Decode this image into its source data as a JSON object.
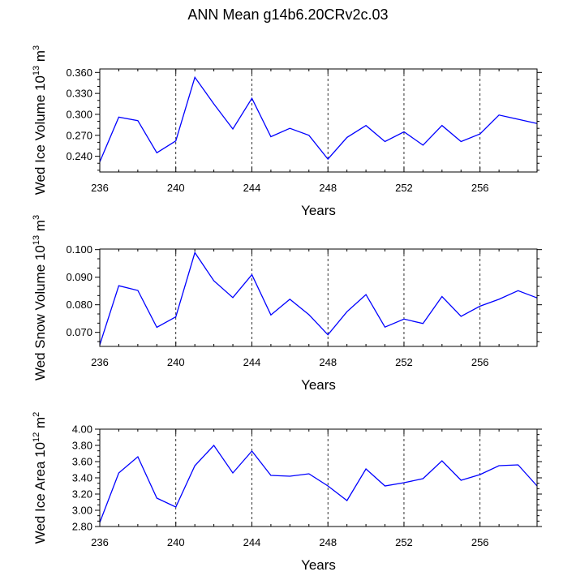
{
  "title": "ANN Mean g14b6.20CRv2c.03",
  "chart_data": [
    {
      "type": "line",
      "title": "ANN Mean g14b6.20CRv2c.03",
      "xlabel": "Years",
      "ylabel": "Wed Ice Volume 10^13 m^3",
      "ylabel_parts": [
        "Wed Ice Volume 10",
        "13",
        " m",
        "3"
      ],
      "xlim": [
        236,
        259
      ],
      "ylim": [
        0.2175,
        0.365
      ],
      "xticks": [
        236,
        240,
        244,
        248,
        252,
        256
      ],
      "yticks": [
        0.24,
        0.27,
        0.3,
        0.33,
        0.36
      ],
      "ytick_labels": [
        "0.240",
        "0.270",
        "0.300",
        "0.330",
        "0.360"
      ],
      "gridlines_x": [
        240,
        244,
        248,
        252,
        256
      ],
      "color": "#0000ff",
      "x": [
        236,
        237,
        238,
        239,
        240,
        241,
        242,
        243,
        244,
        245,
        246,
        247,
        248,
        249,
        250,
        251,
        252,
        253,
        254,
        255,
        256,
        257,
        258,
        259
      ],
      "values": [
        0.232,
        0.296,
        0.291,
        0.245,
        0.262,
        0.353,
        0.315,
        0.279,
        0.323,
        0.268,
        0.28,
        0.27,
        0.236,
        0.267,
        0.284,
        0.261,
        0.275,
        0.256,
        0.284,
        0.261,
        0.272,
        0.299,
        0.293,
        0.287
      ]
    },
    {
      "type": "line",
      "xlabel": "Years",
      "ylabel": "Wed Snow Volume 10^13 m^3",
      "ylabel_parts": [
        "Wed Snow Volume 10",
        "13",
        " m",
        "3"
      ],
      "xlim": [
        236,
        259
      ],
      "ylim": [
        0.0649,
        0.1002
      ],
      "xticks": [
        236,
        240,
        244,
        248,
        252,
        256
      ],
      "yticks": [
        0.07,
        0.08,
        0.09,
        0.1
      ],
      "ytick_labels": [
        "0.070",
        "0.080",
        "0.090",
        "0.100"
      ],
      "gridlines_x": [
        240,
        244,
        248,
        252,
        256
      ],
      "color": "#0000ff",
      "x": [
        236,
        237,
        238,
        239,
        240,
        241,
        242,
        243,
        244,
        245,
        246,
        247,
        248,
        249,
        250,
        251,
        252,
        253,
        254,
        255,
        256,
        257,
        258,
        259
      ],
      "values": [
        0.0655,
        0.0869,
        0.0852,
        0.0718,
        0.0756,
        0.0989,
        0.0887,
        0.0826,
        0.0909,
        0.0763,
        0.082,
        0.0764,
        0.0691,
        0.0775,
        0.0837,
        0.0719,
        0.0748,
        0.0732,
        0.083,
        0.0758,
        0.0795,
        0.082,
        0.0851,
        0.0825
      ]
    },
    {
      "type": "line",
      "xlabel": "Years",
      "ylabel": "Wed Ice Area 10^12 m^2",
      "ylabel_parts": [
        "Wed Ice Area 10",
        "12",
        " m",
        "2"
      ],
      "xlim": [
        236,
        259
      ],
      "ylim": [
        2.8,
        4.0
      ],
      "xticks": [
        236,
        240,
        244,
        248,
        252,
        256
      ],
      "yticks": [
        2.8,
        3.0,
        3.2,
        3.4,
        3.6,
        3.8,
        4.0
      ],
      "ytick_labels": [
        "2.80",
        "3.00",
        "3.20",
        "3.40",
        "3.60",
        "3.80",
        "4.00"
      ],
      "gridlines_x": [
        240,
        244,
        248,
        252,
        256
      ],
      "color": "#0000ff",
      "x": [
        236,
        237,
        238,
        239,
        240,
        241,
        242,
        243,
        244,
        245,
        246,
        247,
        248,
        249,
        250,
        251,
        252,
        253,
        254,
        255,
        256,
        257,
        258,
        259
      ],
      "values": [
        2.85,
        3.46,
        3.66,
        3.15,
        3.04,
        3.55,
        3.8,
        3.46,
        3.73,
        3.43,
        3.42,
        3.45,
        3.3,
        3.12,
        3.51,
        3.3,
        3.34,
        3.39,
        3.61,
        3.37,
        3.44,
        3.55,
        3.56,
        3.3
      ]
    }
  ]
}
